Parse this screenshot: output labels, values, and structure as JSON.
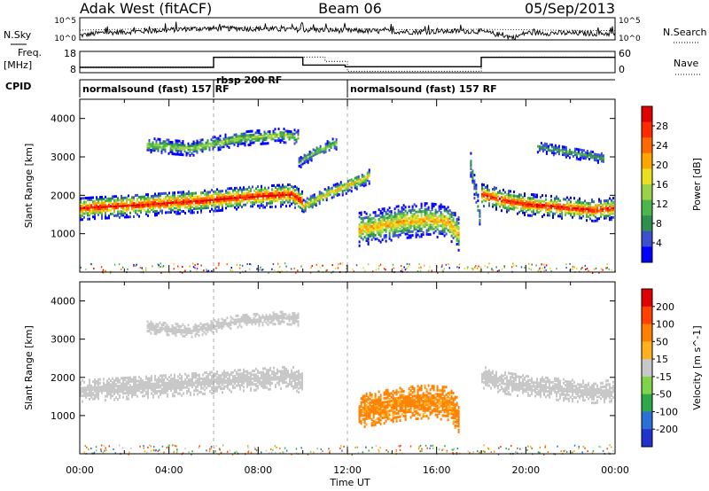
{
  "header": {
    "station": "Adak West (fitACF)",
    "beam": "Beam 06",
    "date": "05/Sep/2013"
  },
  "left_labels": {
    "nsky": "N.Sky",
    "freq": "Freq.",
    "freq_unit": "[MHz]",
    "cpid": "CPID"
  },
  "right_labels": {
    "nsearch": "N.Search",
    "nave": "Nave"
  },
  "ticks": {
    "noise_left": [
      "10^5",
      "10^0"
    ],
    "noise_right": [
      "10^5",
      "10^0"
    ],
    "freq_left": [
      "18",
      "8"
    ],
    "nave_right": [
      "60",
      "0"
    ],
    "slant_range": [
      "1000",
      "2000",
      "3000",
      "4000"
    ],
    "time": [
      "00:00",
      "04:00",
      "08:00",
      "12:00",
      "16:00",
      "20:00",
      "00:00"
    ]
  },
  "cpid_segments": [
    {
      "label": "normalsound (fast) 157 RF",
      "start_hour": 0,
      "end_hour": 6
    },
    {
      "label": "rbsp 200 RF",
      "start_hour": 6,
      "end_hour": 12
    },
    {
      "label": "normalsound (fast) 157 RF",
      "start_hour": 12,
      "end_hour": 24
    }
  ],
  "axes": {
    "ylabel": "Slant Range [km]",
    "xlabel": "Time UT"
  },
  "colorbars": {
    "power": {
      "label": "Power [dB]",
      "ticks": [
        "28",
        "24",
        "20",
        "16",
        "12",
        "8",
        "4"
      ],
      "colors": [
        "#0000ff",
        "#3b4fcf",
        "#2f8f4f",
        "#4cb64c",
        "#9ad24a",
        "#e8e020",
        "#ffa500",
        "#ff6a00",
        "#ff2a00",
        "#e00000"
      ]
    },
    "velocity": {
      "label": "Velocity [m s^-1]",
      "ticks": [
        "200",
        "100",
        "50",
        "15",
        "-15",
        "-50",
        "-100",
        "-200"
      ],
      "colors": [
        "#2233cc",
        "#2a70d8",
        "#2ea84a",
        "#7fd44a",
        "#c8c8c8",
        "#ffb020",
        "#ff8000",
        "#ff4000",
        "#e00000"
      ]
    }
  },
  "chart_data": [
    {
      "type": "line",
      "name": "noise",
      "x_range": [
        0,
        24
      ],
      "series": [
        {
          "name": "N.Sky",
          "x": [
            0,
            1,
            3,
            5,
            7,
            9,
            11,
            13,
            15,
            17,
            18,
            19.5,
            20,
            22,
            24
          ],
          "y": [
            1.0,
            1.6,
            2.0,
            2.5,
            2.6,
            2.4,
            2.2,
            2.0,
            1.8,
            2.0,
            1.9,
            0.5,
            1.6,
            1.5,
            1.4
          ]
        },
        {
          "name": "N.Search",
          "x": [
            0,
            3,
            6,
            9,
            12,
            15,
            18,
            21,
            24
          ],
          "y": [
            2.2,
            2.5,
            2.8,
            2.6,
            2.5,
            2.3,
            2.4,
            2.2,
            2.1
          ]
        }
      ],
      "ylim": [
        0,
        5
      ],
      "y_scale": "log"
    },
    {
      "type": "line",
      "name": "frequency_and_nave",
      "x_range": [
        0,
        24
      ],
      "series": [
        {
          "name": "Freq.",
          "x": [
            0,
            6,
            6,
            10,
            10,
            11.9,
            11.9,
            18,
            18,
            24
          ],
          "y": [
            10.5,
            10.5,
            15.2,
            15.2,
            11.6,
            11.6,
            10.8,
            10.8,
            15.2,
            15.2
          ]
        },
        {
          "name": "Nave",
          "x": [
            0,
            6,
            6,
            11,
            11,
            12,
            12,
            18,
            18,
            24
          ],
          "y": [
            16,
            16,
            44,
            44,
            32,
            32,
            4,
            4,
            44,
            44
          ]
        }
      ],
      "ylim_freq": [
        8,
        18
      ],
      "ylim_nave": [
        0,
        60
      ]
    },
    {
      "type": "heatmap",
      "name": "power",
      "xlabel": "Time UT",
      "ylabel": "Slant Range [km]",
      "x_range": [
        0,
        24
      ],
      "ylim": [
        0,
        4500
      ],
      "colorbar_range": [
        0,
        30
      ],
      "features": [
        {
          "x": [
            0.0,
            0.5,
            1.5,
            2.5,
            3.5,
            4.5,
            5.5,
            6.5,
            7.5,
            8.5,
            9.5,
            10.0
          ],
          "y_center": [
            1700,
            1720,
            1750,
            1780,
            1820,
            1860,
            1900,
            1950,
            1990,
            2030,
            2060,
            1850
          ],
          "half_width": 230,
          "peak_db": 28
        },
        {
          "x": [
            10.0,
            11.0,
            12.0,
            13.0
          ],
          "y_center": [
            1750,
            2050,
            2300,
            2550
          ],
          "half_width": 150,
          "peak_db": 18
        },
        {
          "x": [
            12.5,
            13.5,
            14.5,
            15.5,
            16.5,
            17.0
          ],
          "y_center": [
            1150,
            1250,
            1350,
            1400,
            1350,
            1000
          ],
          "half_width": 330,
          "peak_db": 20
        },
        {
          "x": [
            18.0,
            19.0,
            20.0,
            21.0,
            22.0,
            23.0,
            24.0
          ],
          "y_center": [
            2050,
            1900,
            1800,
            1750,
            1700,
            1650,
            1700
          ],
          "half_width": 220,
          "peak_db": 28
        },
        {
          "x": [
            3.0,
            4.0,
            5.0,
            6.0,
            7.0,
            8.0,
            9.0,
            9.8
          ],
          "y_center": [
            3350,
            3300,
            3250,
            3380,
            3500,
            3550,
            3600,
            3550
          ],
          "half_width": 140,
          "peak_db": 14
        },
        {
          "x": [
            9.8,
            10.5,
            11.5
          ],
          "y_center": [
            2900,
            3150,
            3400
          ],
          "half_width": 120,
          "peak_db": 12
        },
        {
          "x": [
            20.5,
            21.5,
            22.5,
            23.5
          ],
          "y_center": [
            3300,
            3200,
            3100,
            3000
          ],
          "half_width": 110,
          "peak_db": 10
        },
        {
          "x": [
            17.5,
            17.9
          ],
          "y_center": [
            2800,
            1500
          ],
          "half_width": 250,
          "peak_db": 8
        }
      ]
    },
    {
      "type": "heatmap",
      "name": "velocity",
      "xlabel": "Time UT",
      "ylabel": "Slant Range [km]",
      "x_range": [
        0,
        24
      ],
      "ylim": [
        0,
        4500
      ],
      "colorbar_range": [
        -200,
        200
      ],
      "features": [
        {
          "x": [
            0.0,
            1.5,
            3.5,
            5.5,
            7.5,
            9.5,
            10.0
          ],
          "y_center": [
            1700,
            1750,
            1820,
            1900,
            1990,
            2060,
            1850
          ],
          "half_width": 230,
          "velocity": 0
        },
        {
          "x": [
            12.5,
            13.5,
            14.5,
            15.5,
            16.5,
            17.0
          ],
          "y_center": [
            1150,
            1250,
            1350,
            1400,
            1350,
            1000
          ],
          "half_width": 330,
          "velocity": -60
        },
        {
          "x": [
            18.0,
            19.0,
            20.0,
            21.0,
            22.0,
            23.0,
            24.0
          ],
          "y_center": [
            2050,
            1900,
            1800,
            1750,
            1700,
            1650,
            1700
          ],
          "half_width": 220,
          "velocity": 0
        },
        {
          "x": [
            3.0,
            5.0,
            7.0,
            9.0,
            9.8
          ],
          "y_center": [
            3350,
            3250,
            3500,
            3600,
            3550
          ],
          "half_width": 120,
          "velocity": 0
        }
      ]
    }
  ]
}
